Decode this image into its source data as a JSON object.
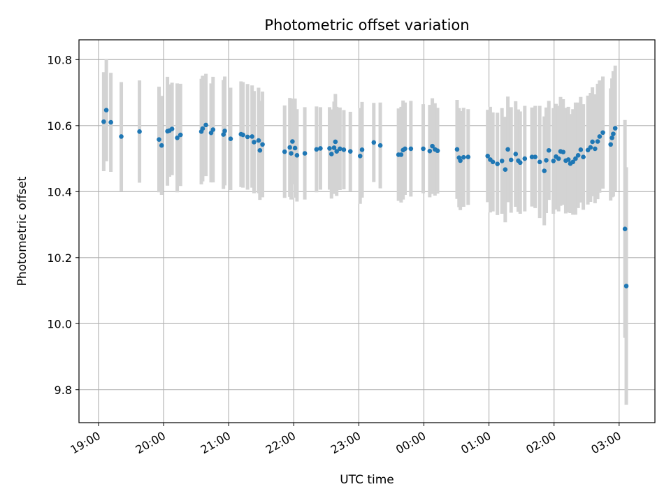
{
  "chart_data": {
    "type": "scatter",
    "title": "Photometric offset variation",
    "xlabel": "UTC time",
    "ylabel": "Photometric offset",
    "x_unit": "UTC time (hours, times after midnight shown as 24+)",
    "xlim": [
      18.7,
      27.55
    ],
    "ylim": [
      9.7,
      10.86
    ],
    "xticks": [
      19,
      20,
      21,
      22,
      23,
      24,
      25,
      26,
      27
    ],
    "xtick_labels": [
      "19:00",
      "20:00",
      "21:00",
      "22:00",
      "23:00",
      "00:00",
      "01:00",
      "02:00",
      "03:00"
    ],
    "yticks": [
      9.8,
      10.0,
      10.2,
      10.4,
      10.6,
      10.8
    ],
    "ytick_labels": [
      "9.8",
      "10.0",
      "10.2",
      "10.4",
      "10.6",
      "10.8"
    ],
    "grid": true,
    "colors": {
      "point": "#1f77b4",
      "errorbar": "#d3d3d3",
      "grid": "#b0b0b0"
    },
    "series": [
      {
        "points": [
          [
            19.08,
            10.612,
            0.15
          ],
          [
            19.12,
            10.647,
            0.155
          ],
          [
            19.19,
            10.61,
            0.15
          ],
          [
            19.35,
            10.567,
            0.165
          ],
          [
            19.63,
            10.582,
            0.155
          ],
          [
            19.93,
            10.558,
            0.16
          ],
          [
            19.97,
            10.54,
            0.15
          ],
          [
            20.06,
            10.583,
            0.165
          ],
          [
            20.09,
            10.585,
            0.14
          ],
          [
            20.13,
            10.59,
            0.14
          ],
          [
            20.21,
            10.563,
            0.165
          ],
          [
            20.26,
            10.572,
            0.155
          ],
          [
            20.58,
            10.582,
            0.16
          ],
          [
            20.6,
            10.591,
            0.16
          ],
          [
            20.65,
            10.602,
            0.155
          ],
          [
            20.73,
            10.578,
            0.15
          ],
          [
            20.76,
            10.588,
            0.16
          ],
          [
            20.92,
            10.573,
            0.165
          ],
          [
            20.94,
            10.584,
            0.165
          ],
          [
            21.03,
            10.56,
            0.155
          ],
          [
            21.19,
            10.574,
            0.16
          ],
          [
            21.22,
            10.572,
            0.16
          ],
          [
            21.29,
            10.566,
            0.16
          ],
          [
            21.36,
            10.567,
            0.155
          ],
          [
            21.39,
            10.55,
            0.155
          ],
          [
            21.46,
            10.555,
            0.16
          ],
          [
            21.48,
            10.525,
            0.15
          ],
          [
            21.52,
            10.543,
            0.16
          ],
          [
            21.86,
            10.521,
            0.14
          ],
          [
            21.94,
            10.534,
            0.15
          ],
          [
            21.96,
            10.516,
            0.14
          ],
          [
            21.98,
            10.552,
            0.13
          ],
          [
            22.02,
            10.532,
            0.15
          ],
          [
            22.05,
            10.51,
            0.14
          ],
          [
            22.17,
            10.516,
            0.14
          ],
          [
            22.35,
            10.528,
            0.13
          ],
          [
            22.41,
            10.531,
            0.125
          ],
          [
            22.55,
            10.531,
            0.125
          ],
          [
            22.58,
            10.514,
            0.135
          ],
          [
            22.62,
            10.533,
            0.14
          ],
          [
            22.64,
            10.551,
            0.145
          ],
          [
            22.66,
            10.522,
            0.135
          ],
          [
            22.71,
            10.53,
            0.125
          ],
          [
            22.77,
            10.527,
            0.12
          ],
          [
            22.87,
            10.522,
            0.12
          ],
          [
            23.02,
            10.508,
            0.145
          ],
          [
            23.05,
            10.527,
            0.145
          ],
          [
            23.23,
            10.549,
            0.12
          ],
          [
            23.33,
            10.54,
            0.13
          ],
          [
            23.61,
            10.512,
            0.14
          ],
          [
            23.65,
            10.512,
            0.145
          ],
          [
            23.68,
            10.526,
            0.15
          ],
          [
            23.71,
            10.53,
            0.14
          ],
          [
            23.8,
            10.53,
            0.145
          ],
          [
            23.99,
            10.53,
            0.135
          ],
          [
            24.09,
            10.523,
            0.14
          ],
          [
            24.13,
            10.538,
            0.145
          ],
          [
            24.17,
            10.528,
            0.14
          ],
          [
            24.21,
            10.524,
            0.13
          ],
          [
            24.51,
            10.528,
            0.15
          ],
          [
            24.54,
            10.503,
            0.15
          ],
          [
            24.56,
            10.494,
            0.15
          ],
          [
            24.61,
            10.504,
            0.15
          ],
          [
            24.68,
            10.505,
            0.145
          ],
          [
            24.98,
            10.508,
            0.14
          ],
          [
            25.02,
            10.497,
            0.16
          ],
          [
            25.06,
            10.49,
            0.15
          ],
          [
            25.13,
            10.484,
            0.155
          ],
          [
            25.2,
            10.493,
            0.16
          ],
          [
            25.25,
            10.467,
            0.16
          ],
          [
            25.29,
            10.528,
            0.16
          ],
          [
            25.34,
            10.496,
            0.16
          ],
          [
            25.41,
            10.514,
            0.16
          ],
          [
            25.45,
            10.494,
            0.155
          ],
          [
            25.48,
            10.488,
            0.155
          ],
          [
            25.55,
            10.5,
            0.16
          ],
          [
            25.66,
            10.505,
            0.15
          ],
          [
            25.71,
            10.505,
            0.155
          ],
          [
            25.78,
            10.49,
            0.17
          ],
          [
            25.85,
            10.463,
            0.165
          ],
          [
            25.88,
            10.495,
            0.16
          ],
          [
            25.92,
            10.525,
            0.15
          ],
          [
            25.99,
            10.493,
            0.16
          ],
          [
            26.03,
            10.506,
            0.16
          ],
          [
            26.07,
            10.5,
            0.16
          ],
          [
            26.1,
            10.522,
            0.165
          ],
          [
            26.14,
            10.52,
            0.16
          ],
          [
            26.18,
            10.494,
            0.16
          ],
          [
            26.22,
            10.497,
            0.16
          ],
          [
            26.25,
            10.485,
            0.15
          ],
          [
            26.29,
            10.49,
            0.16
          ],
          [
            26.33,
            10.5,
            0.17
          ],
          [
            26.37,
            10.51,
            0.16
          ],
          [
            26.41,
            10.527,
            0.16
          ],
          [
            26.45,
            10.505,
            0.16
          ],
          [
            26.52,
            10.526,
            0.165
          ],
          [
            26.56,
            10.534,
            0.165
          ],
          [
            26.59,
            10.551,
            0.165
          ],
          [
            26.63,
            10.53,
            0.165
          ],
          [
            26.67,
            10.552,
            0.175
          ],
          [
            26.7,
            10.567,
            0.17
          ],
          [
            26.75,
            10.579,
            0.17
          ],
          [
            26.87,
            10.543,
            0.17
          ],
          [
            26.89,
            10.563,
            0.18
          ],
          [
            26.91,
            10.575,
            0.19
          ],
          [
            26.94,
            10.592,
            0.19
          ],
          [
            27.09,
            10.287,
            0.33
          ],
          [
            27.11,
            10.114,
            0.36
          ]
        ]
      }
    ]
  }
}
